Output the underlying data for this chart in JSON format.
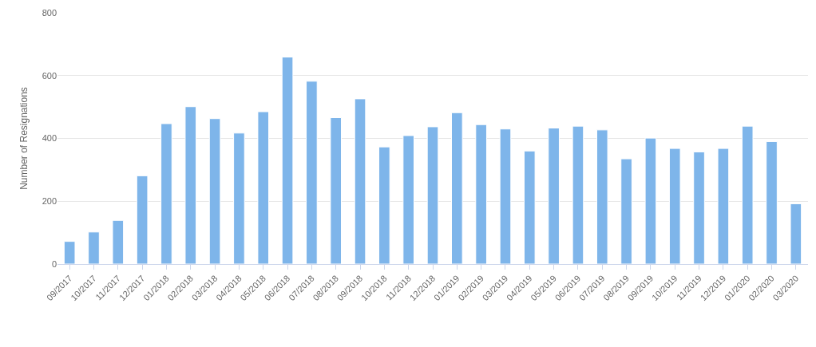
{
  "chart_data": {
    "type": "bar",
    "ylabel": "Number of Resignations",
    "categories": [
      "09/2017",
      "10/2017",
      "11/2017",
      "12/2017",
      "01/2018",
      "02/2018",
      "03/2018",
      "04/2018",
      "05/2018",
      "06/2018",
      "07/2018",
      "08/2018",
      "09/2018",
      "10/2018",
      "11/2018",
      "12/2018",
      "01/2019",
      "02/2019",
      "03/2019",
      "04/2019",
      "05/2019",
      "06/2019",
      "07/2019",
      "08/2019",
      "09/2019",
      "10/2019",
      "11/2019",
      "12/2019",
      "01/2020",
      "02/2020",
      "03/2020"
    ],
    "values": [
      72,
      102,
      139,
      281,
      447,
      501,
      463,
      417,
      485,
      659,
      582,
      466,
      526,
      373,
      409,
      437,
      482,
      444,
      430,
      360,
      433,
      439,
      427,
      335,
      401,
      368,
      357,
      368,
      439,
      390,
      192
    ],
    "color": "#7eb5ea",
    "ylim": [
      0,
      800
    ],
    "yticks": [
      0,
      200,
      400,
      600,
      800
    ],
    "grid": "y"
  }
}
